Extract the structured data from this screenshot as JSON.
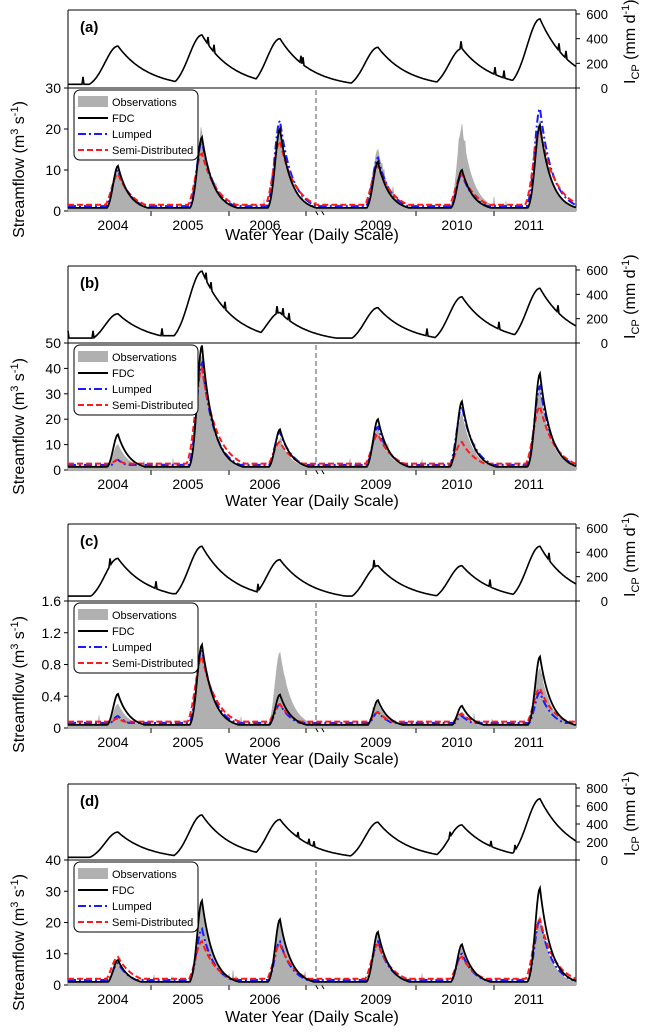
{
  "figure": {
    "xlabel": "Water Year (Daily Scale)",
    "left_ylabel_main": "Streamflow (m",
    "left_ylabel_sup1": "3",
    "left_ylabel_mid": " s",
    "left_ylabel_sup2": "-1",
    "left_ylabel_end": ")",
    "right_ylabel_main": "I",
    "right_ylabel_sub": "CP",
    "right_ylabel_unit": " (mm d",
    "right_ylabel_sup": "-1",
    "right_ylabel_end": ")",
    "years": [
      "2004",
      "2005",
      "2006",
      "2009",
      "2010",
      "2011"
    ],
    "legend": [
      "Observations",
      "FDC",
      "Lumped",
      "Semi-Distributed"
    ],
    "colors": {
      "obs": "#b0b0b0",
      "fdc": "#000000",
      "lumped": "#1a1aff",
      "semi": "#ff1a1a"
    }
  },
  "chart_data": [
    {
      "type": "line",
      "panel": "(a)",
      "years": [
        "2004",
        "2005",
        "2006",
        "2009",
        "2010",
        "2011"
      ],
      "precip": {
        "ticks": [
          "0",
          "200",
          "400",
          "600"
        ],
        "ylim": [
          0,
          600
        ],
        "peaks": [
          340,
          430,
          400,
          330,
          320,
          560
        ],
        "base": [
          30,
          50,
          60,
          40,
          40,
          40
        ]
      },
      "flow": {
        "ticks": [
          "0",
          "10",
          "20",
          "30"
        ],
        "ylim": [
          0,
          30
        ],
        "yticks": [
          0,
          10,
          20,
          30
        ],
        "obs_peaks": [
          10,
          19,
          21,
          15,
          20,
          22
        ],
        "fdc_peaks": [
          11,
          18,
          20,
          12,
          10,
          21
        ],
        "lumped_peaks": [
          10,
          17,
          22,
          13,
          9,
          25
        ],
        "semi_peaks": [
          9,
          14,
          17,
          11,
          9,
          20
        ]
      }
    },
    {
      "type": "line",
      "panel": "(b)",
      "years": [
        "2004",
        "2005",
        "2006",
        "2009",
        "2010",
        "2011"
      ],
      "precip": {
        "ticks": [
          "0",
          "200",
          "400",
          "600"
        ],
        "ylim": [
          0,
          600
        ],
        "peaks": [
          240,
          590,
          250,
          290,
          380,
          450
        ],
        "base": [
          40,
          60,
          60,
          40,
          40,
          40
        ]
      },
      "flow": {
        "ticks": [
          "0",
          "10",
          "20",
          "30",
          "40",
          "50"
        ],
        "ylim": [
          0,
          50
        ],
        "yticks": [
          0,
          10,
          20,
          30,
          40,
          50
        ],
        "obs_peaks": [
          10,
          45,
          12,
          16,
          22,
          32
        ],
        "fdc_peaks": [
          14,
          49,
          16,
          20,
          27,
          38
        ],
        "lumped_peaks": [
          4,
          42,
          15,
          17,
          25,
          33
        ],
        "semi_peaks": [
          4,
          40,
          11,
          14,
          11,
          25
        ]
      }
    },
    {
      "type": "line",
      "panel": "(c)",
      "years": [
        "2004",
        "2005",
        "2006",
        "2009",
        "2010",
        "2011"
      ],
      "precip": {
        "ticks": [
          "0",
          "200",
          "400",
          "600"
        ],
        "ylim": [
          0,
          600
        ],
        "peaks": [
          350,
          450,
          340,
          290,
          290,
          450
        ],
        "base": [
          40,
          60,
          60,
          40,
          40,
          40
        ]
      },
      "flow": {
        "ticks": [
          "0",
          "0.4",
          "0.8",
          "1.2",
          "1.6"
        ],
        "ylim": [
          0,
          1.6
        ],
        "yticks": [
          0,
          0.4,
          0.8,
          1.2,
          1.6
        ],
        "obs_peaks": [
          0.3,
          0.95,
          0.95,
          0.3,
          0.2,
          0.75
        ],
        "fdc_peaks": [
          0.43,
          1.05,
          0.42,
          0.35,
          0.28,
          0.9
        ],
        "lumped_peaks": [
          0.15,
          1.0,
          0.3,
          0.2,
          0.15,
          0.45
        ],
        "semi_peaks": [
          0.12,
          0.9,
          0.3,
          0.2,
          0.18,
          0.5
        ]
      }
    },
    {
      "type": "line",
      "panel": "(d)",
      "years": [
        "2004",
        "2005",
        "2006",
        "2009",
        "2010",
        "2011"
      ],
      "precip": {
        "ticks": [
          "0",
          "200",
          "400",
          "600",
          "800"
        ],
        "ylim": [
          0,
          800
        ],
        "peaks": [
          310,
          500,
          450,
          420,
          390,
          680
        ],
        "base": [
          30,
          50,
          50,
          40,
          40,
          40
        ]
      },
      "flow": {
        "ticks": [
          "0",
          "10",
          "20",
          "30",
          "40"
        ],
        "ylim": [
          0,
          40
        ],
        "yticks": [
          0,
          10,
          20,
          30,
          40
        ],
        "obs_peaks": [
          7,
          26,
          20,
          16,
          12,
          22
        ],
        "fdc_peaks": [
          8,
          27,
          21,
          17,
          13,
          31
        ],
        "lumped_peaks": [
          7,
          18,
          14,
          14,
          10,
          21
        ],
        "semi_peaks": [
          9,
          14,
          13,
          13,
          9,
          21
        ]
      }
    }
  ]
}
